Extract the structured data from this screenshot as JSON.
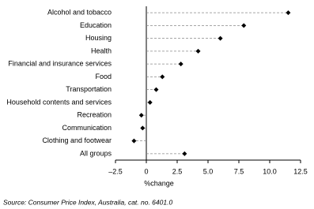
{
  "chart_data": {
    "type": "dot",
    "categories": [
      "Alcohol and tobacco",
      "Education",
      "Housing",
      "Health",
      "Financial and insurance services",
      "Food",
      "Transportation",
      "Household contents and services",
      "Recreation",
      "Communication",
      "Clothing and footwear",
      "All groups"
    ],
    "values": [
      11.5,
      7.9,
      6.0,
      4.2,
      2.8,
      1.3,
      0.8,
      0.3,
      -0.4,
      -0.3,
      -1.0,
      3.1
    ],
    "color": "#000000",
    "xlabel": "%change",
    "xlim": [
      -2.5,
      12.5
    ],
    "xticks": [
      {
        "value": -2.5,
        "label": "–2.5"
      },
      0,
      2.5,
      {
        "value": 5,
        "label": "5.0"
      },
      7.5,
      {
        "value": 10,
        "label": "10.0"
      },
      12.5
    ],
    "source": "Source: Consumer Price Index, Australia, cat. no. 6401.0"
  }
}
